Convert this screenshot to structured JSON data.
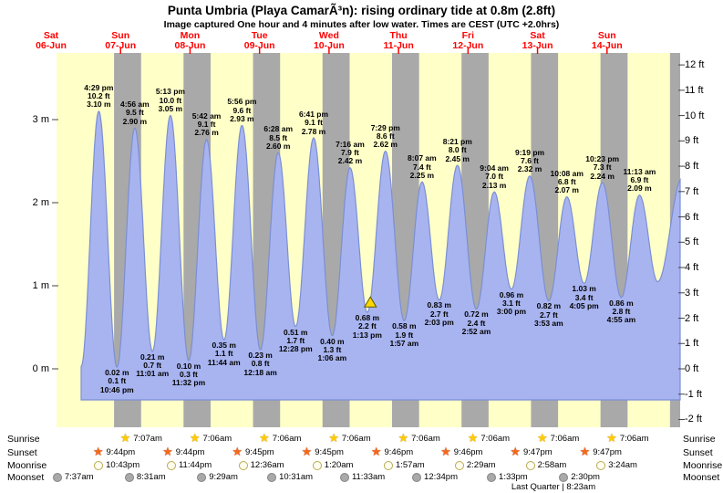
{
  "header": {
    "title": "Punta Umbria (Playa CamarÃ³n): rising  ordinary tide at 0.8m (2.8ft)",
    "subtitle": "Image captured One hour and 4 minutes after low water. Times are CEST (UTC +2.0hrs)"
  },
  "chart_data": {
    "type": "area",
    "title": "Tide height curve for Punta Umbria (Playa CamarÃ³n)",
    "x_days": [
      {
        "name": "Sat",
        "date": "06-Jun"
      },
      {
        "name": "Sun",
        "date": "07-Jun"
      },
      {
        "name": "Mon",
        "date": "08-Jun"
      },
      {
        "name": "Tue",
        "date": "09-Jun"
      },
      {
        "name": "Wed",
        "date": "10-Jun"
      },
      {
        "name": "Thu",
        "date": "11-Jun"
      },
      {
        "name": "Fri",
        "date": "12-Jun"
      },
      {
        "name": "Sat",
        "date": "13-Jun"
      },
      {
        "name": "Sun",
        "date": "14-Jun"
      }
    ],
    "y_left_ticks": [
      "3 m",
      "2 m",
      "1 m",
      "0 m"
    ],
    "y_left_values": [
      3,
      2,
      1,
      0
    ],
    "y_right_ticks": [
      "12 ft",
      "11 ft",
      "10 ft",
      "9 ft",
      "8 ft",
      "7 ft",
      "6 ft",
      "5 ft",
      "4 ft",
      "3 ft",
      "2 ft",
      "1 ft",
      "0 ft",
      "-1 ft",
      "-2 ft"
    ],
    "y_right_values": [
      12,
      11,
      10,
      9,
      8,
      7,
      6,
      5,
      4,
      3,
      2,
      1,
      0,
      -1,
      -2
    ],
    "tide_events": [
      {
        "kind": "high",
        "t_hours": 16.483,
        "height_m": 3.1,
        "labels": [
          "4:29 pm",
          "10.2 ft",
          "3.10 m"
        ]
      },
      {
        "kind": "low",
        "t_hours": 22.767,
        "height_m": 0.02,
        "labels": [
          "0.02 m",
          "0.1 ft",
          "10:46 pm"
        ]
      },
      {
        "kind": "high",
        "t_hours": 28.933,
        "height_m": 2.9,
        "labels": [
          "4:56 am",
          "9.5 ft",
          "2.90 m"
        ]
      },
      {
        "kind": "low",
        "t_hours": 35.017,
        "height_m": 0.21,
        "labels": [
          "0.21 m",
          "0.7 ft",
          "11:01 am"
        ]
      },
      {
        "kind": "high",
        "t_hours": 41.217,
        "height_m": 3.05,
        "labels": [
          "5:13 pm",
          "10.0 ft",
          "3.05 m"
        ]
      },
      {
        "kind": "low",
        "t_hours": 47.533,
        "height_m": 0.1,
        "labels": [
          "0.10 m",
          "0.3 ft",
          "11:32 pm"
        ]
      },
      {
        "kind": "high",
        "t_hours": 53.7,
        "height_m": 2.76,
        "labels": [
          "5:42 am",
          "9.1 ft",
          "2.76 m"
        ]
      },
      {
        "kind": "low",
        "t_hours": 59.733,
        "height_m": 0.35,
        "labels": [
          "0.35 m",
          "1.1 ft",
          "11:44 am"
        ]
      },
      {
        "kind": "high",
        "t_hours": 65.933,
        "height_m": 2.93,
        "labels": [
          "5:56 pm",
          "9.6 ft",
          "2.93 m"
        ]
      },
      {
        "kind": "low",
        "t_hours": 72.3,
        "height_m": 0.23,
        "labels": [
          "0.23 m",
          "0.8 ft",
          "12:18 am"
        ]
      },
      {
        "kind": "high",
        "t_hours": 78.467,
        "height_m": 2.6,
        "labels": [
          "6:28 am",
          "8.5 ft",
          "2.60 m"
        ]
      },
      {
        "kind": "low",
        "t_hours": 84.467,
        "height_m": 0.51,
        "labels": [
          "0.51 m",
          "1.7 ft",
          "12:28 pm"
        ]
      },
      {
        "kind": "high",
        "t_hours": 90.683,
        "height_m": 2.78,
        "labels": [
          "6:41 pm",
          "9.1 ft",
          "2.78 m"
        ]
      },
      {
        "kind": "low",
        "t_hours": 97.1,
        "height_m": 0.4,
        "labels": [
          "0.40 m",
          "1.3 ft",
          "1:06 am"
        ]
      },
      {
        "kind": "high",
        "t_hours": 103.267,
        "height_m": 2.42,
        "labels": [
          "7:16 am",
          "7.9 ft",
          "2.42 m"
        ]
      },
      {
        "kind": "low",
        "t_hours": 109.217,
        "height_m": 0.68,
        "labels": [
          "0.68 m",
          "2.2 ft",
          "1:13 pm"
        ]
      },
      {
        "kind": "high",
        "t_hours": 115.483,
        "height_m": 2.62,
        "labels": [
          "7:29 pm",
          "8.6 ft",
          "2.62 m"
        ]
      },
      {
        "kind": "low",
        "t_hours": 121.95,
        "height_m": 0.58,
        "labels": [
          "0.58 m",
          "1.9 ft",
          "1:57 am"
        ]
      },
      {
        "kind": "high",
        "t_hours": 128.117,
        "height_m": 2.25,
        "labels": [
          "8:07 am",
          "7.4 ft",
          "2.25 m"
        ]
      },
      {
        "kind": "low",
        "t_hours": 134.05,
        "height_m": 0.83,
        "labels": [
          "0.83 m",
          "2.7 ft",
          "2:03 pm"
        ]
      },
      {
        "kind": "high",
        "t_hours": 140.35,
        "height_m": 2.45,
        "labels": [
          "8:21 pm",
          "8.0 ft",
          "2.45 m"
        ]
      },
      {
        "kind": "low",
        "t_hours": 146.867,
        "height_m": 0.72,
        "labels": [
          "0.72 m",
          "2.4 ft",
          "2:52 am"
        ]
      },
      {
        "kind": "high",
        "t_hours": 153.067,
        "height_m": 2.13,
        "labels": [
          "9:04 am",
          "7.0 ft",
          "2.13 m"
        ]
      },
      {
        "kind": "low",
        "t_hours": 159.0,
        "height_m": 0.96,
        "labels": [
          "0.96 m",
          "3.1 ft",
          "3:00 pm"
        ]
      },
      {
        "kind": "high",
        "t_hours": 165.317,
        "height_m": 2.32,
        "labels": [
          "9:19 pm",
          "7.6 ft",
          "2.32 m"
        ]
      },
      {
        "kind": "low",
        "t_hours": 171.883,
        "height_m": 0.82,
        "labels": [
          "0.82 m",
          "2.7 ft",
          "3:53 am"
        ]
      },
      {
        "kind": "high",
        "t_hours": 178.133,
        "height_m": 2.07,
        "labels": [
          "10:08 am",
          "6.8 ft",
          "2.07 m"
        ]
      },
      {
        "kind": "low",
        "t_hours": 184.083,
        "height_m": 1.03,
        "labels": [
          "1.03 m",
          "3.4 ft",
          "4:05 pm"
        ]
      },
      {
        "kind": "high",
        "t_hours": 190.383,
        "height_m": 2.24,
        "labels": [
          "10:23 pm",
          "7.3 ft",
          "2.24 m"
        ]
      },
      {
        "kind": "low",
        "t_hours": 196.917,
        "height_m": 0.86,
        "labels": [
          "0.86 m",
          "2.8 ft",
          "4:55 am"
        ]
      },
      {
        "kind": "high",
        "t_hours": 203.217,
        "height_m": 2.09,
        "labels": [
          "11:13 am",
          "6.9 ft",
          "2.09 m"
        ]
      }
    ],
    "curve_anchors": [
      {
        "t_hours": 10.4,
        "height_m": 0.03
      },
      {
        "t_hours": 209.5,
        "height_m": 1.05
      },
      {
        "t_hours": 218.0,
        "height_m": 2.3
      }
    ],
    "current_position": {
      "t_hours": 110.28,
      "height_m": 0.8
    },
    "night": {
      "sunset_hour": 21.75,
      "sunrise_hour": 7.1,
      "nights": 9
    },
    "colors": {
      "daylight_bg": "#ffffc8",
      "night_band": "#a9a9a9",
      "tide_fill": "#a8b4f0",
      "tide_stroke": "#7b8fd4",
      "day_label": "#ff0000",
      "current_marker": "#ffd700"
    }
  },
  "astro": {
    "rows": [
      {
        "label": "Sunrise",
        "icon": "sunrise-star-icon",
        "entries": [
          {
            "time": "7:07am",
            "t_hours": 31.1
          },
          {
            "time": "7:06am",
            "t_hours": 55.1
          },
          {
            "time": "7:06am",
            "t_hours": 79.1
          },
          {
            "time": "7:06am",
            "t_hours": 103.1
          },
          {
            "time": "7:06am",
            "t_hours": 127.1
          },
          {
            "time": "7:06am",
            "t_hours": 151.1
          },
          {
            "time": "7:06am",
            "t_hours": 175.1
          },
          {
            "time": "7:06am",
            "t_hours": 199.1
          }
        ]
      },
      {
        "label": "Sunset",
        "icon": "sunset-star-icon",
        "entries": [
          {
            "time": "9:44pm",
            "t_hours": 21.733
          },
          {
            "time": "9:44pm",
            "t_hours": 45.733
          },
          {
            "time": "9:45pm",
            "t_hours": 69.75
          },
          {
            "time": "9:45pm",
            "t_hours": 93.75
          },
          {
            "time": "9:46pm",
            "t_hours": 117.767
          },
          {
            "time": "9:46pm",
            "t_hours": 141.767
          },
          {
            "time": "9:47pm",
            "t_hours": 165.783
          },
          {
            "time": "9:47pm",
            "t_hours": 189.783
          }
        ]
      },
      {
        "label": "Moonrise",
        "icon": "moonrise-circle-icon",
        "entries": [
          {
            "time": "10:43pm",
            "t_hours": 22.717
          },
          {
            "time": "11:44pm",
            "t_hours": 47.733
          },
          {
            "time": "12:36am",
            "t_hours": 72.6
          },
          {
            "time": "1:20am",
            "t_hours": 97.333
          },
          {
            "time": "1:57am",
            "t_hours": 121.95
          },
          {
            "time": "2:29am",
            "t_hours": 146.483
          },
          {
            "time": "2:58am",
            "t_hours": 170.967
          },
          {
            "time": "3:24am",
            "t_hours": 195.4
          }
        ]
      },
      {
        "label": "Moonset",
        "icon": "moonset-circle-icon",
        "entries": [
          {
            "time": "7:37am",
            "t_hours": 7.617
          },
          {
            "time": "8:31am",
            "t_hours": 32.517
          },
          {
            "time": "9:29am",
            "t_hours": 57.483
          },
          {
            "time": "10:31am",
            "t_hours": 82.517
          },
          {
            "time": "11:33am",
            "t_hours": 107.55
          },
          {
            "time": "12:34pm",
            "t_hours": 132.567
          },
          {
            "time": "1:33pm",
            "t_hours": 157.55
          },
          {
            "time": "2:30pm",
            "t_hours": 182.5
          }
        ]
      }
    ],
    "moon_phase_note": "Last Quarter | 8:23am"
  }
}
